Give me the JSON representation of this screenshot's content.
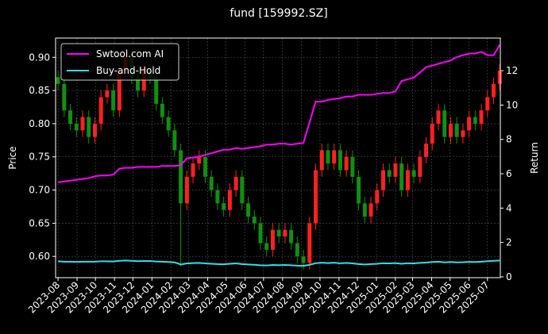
{
  "chart_data": {
    "type": "candlestick",
    "title": "fund [159992.SZ]",
    "ylabel": "Price",
    "y2label": "Return",
    "x": [
      0,
      10,
      20,
      30,
      40,
      50,
      60,
      70,
      80,
      90,
      100,
      110,
      120,
      130,
      140,
      150,
      160,
      170,
      180,
      190,
      200,
      210,
      220,
      230,
      240,
      250,
      260,
      270,
      280,
      290,
      300,
      310,
      320,
      330,
      340,
      350,
      360,
      370,
      380,
      390,
      400,
      410,
      420,
      430,
      440,
      450,
      460,
      470,
      480,
      490,
      500,
      510,
      520,
      530,
      540,
      550,
      560,
      570,
      580,
      590,
      600,
      610,
      620,
      630,
      640,
      650,
      660,
      670,
      680,
      690,
      700,
      710,
      720
    ],
    "open": [
      0.87,
      0.86,
      0.82,
      0.8,
      0.79,
      0.81,
      0.78,
      0.8,
      0.84,
      0.85,
      0.82,
      0.88,
      0.9,
      0.87,
      0.85,
      0.88,
      0.87,
      0.83,
      0.81,
      0.79,
      0.76,
      0.68,
      0.72,
      0.74,
      0.75,
      0.72,
      0.7,
      0.68,
      0.67,
      0.7,
      0.72,
      0.68,
      0.66,
      0.65,
      0.62,
      0.61,
      0.64,
      0.63,
      0.64,
      0.62,
      0.6,
      0.59,
      0.65,
      0.73,
      0.76,
      0.74,
      0.76,
      0.73,
      0.75,
      0.72,
      0.68,
      0.66,
      0.68,
      0.7,
      0.73,
      0.72,
      0.74,
      0.7,
      0.73,
      0.72,
      0.75,
      0.77,
      0.8,
      0.82,
      0.78,
      0.8,
      0.78,
      0.79,
      0.81,
      0.8,
      0.82,
      0.84,
      0.86
    ],
    "high": [
      0.88,
      0.87,
      0.83,
      0.81,
      0.82,
      0.82,
      0.81,
      0.85,
      0.86,
      0.86,
      0.89,
      0.91,
      0.91,
      0.88,
      0.89,
      0.89,
      0.88,
      0.84,
      0.82,
      0.8,
      0.77,
      0.73,
      0.75,
      0.76,
      0.76,
      0.73,
      0.71,
      0.69,
      0.71,
      0.73,
      0.73,
      0.69,
      0.67,
      0.66,
      0.63,
      0.65,
      0.65,
      0.65,
      0.65,
      0.63,
      0.61,
      0.66,
      0.74,
      0.77,
      0.77,
      0.77,
      0.77,
      0.76,
      0.76,
      0.73,
      0.69,
      0.69,
      0.71,
      0.74,
      0.74,
      0.75,
      0.75,
      0.74,
      0.74,
      0.76,
      0.78,
      0.81,
      0.83,
      0.83,
      0.81,
      0.81,
      0.8,
      0.82,
      0.82,
      0.83,
      0.85,
      0.87,
      0.89
    ],
    "low": [
      0.85,
      0.81,
      0.79,
      0.78,
      0.78,
      0.77,
      0.77,
      0.79,
      0.83,
      0.81,
      0.81,
      0.87,
      0.86,
      0.84,
      0.84,
      0.86,
      0.82,
      0.8,
      0.78,
      0.75,
      0.585,
      0.67,
      0.71,
      0.73,
      0.71,
      0.69,
      0.67,
      0.66,
      0.66,
      0.69,
      0.67,
      0.65,
      0.64,
      0.61,
      0.6,
      0.6,
      0.62,
      0.62,
      0.61,
      0.59,
      0.58,
      0.58,
      0.64,
      0.72,
      0.73,
      0.73,
      0.72,
      0.72,
      0.71,
      0.67,
      0.65,
      0.65,
      0.67,
      0.69,
      0.71,
      0.71,
      0.69,
      0.69,
      0.71,
      0.71,
      0.74,
      0.76,
      0.79,
      0.77,
      0.77,
      0.77,
      0.77,
      0.78,
      0.79,
      0.79,
      0.81,
      0.83,
      0.85
    ],
    "close": [
      0.86,
      0.82,
      0.8,
      0.79,
      0.81,
      0.78,
      0.8,
      0.84,
      0.85,
      0.82,
      0.88,
      0.9,
      0.87,
      0.85,
      0.88,
      0.87,
      0.83,
      0.81,
      0.79,
      0.76,
      0.68,
      0.72,
      0.74,
      0.75,
      0.72,
      0.7,
      0.68,
      0.67,
      0.7,
      0.72,
      0.68,
      0.66,
      0.65,
      0.62,
      0.61,
      0.64,
      0.63,
      0.64,
      0.62,
      0.6,
      0.59,
      0.65,
      0.73,
      0.76,
      0.74,
      0.76,
      0.73,
      0.75,
      0.72,
      0.68,
      0.66,
      0.68,
      0.7,
      0.73,
      0.72,
      0.74,
      0.7,
      0.73,
      0.72,
      0.75,
      0.77,
      0.8,
      0.82,
      0.78,
      0.8,
      0.78,
      0.79,
      0.81,
      0.8,
      0.82,
      0.84,
      0.86,
      0.88
    ],
    "up_color": "#ff2020",
    "down_color": "#109010",
    "series": [
      {
        "name": "Swtool.com AI",
        "color": "#ff00ff",
        "axis": "y2",
        "values": [
          5.5,
          5.55,
          5.6,
          5.65,
          5.7,
          5.75,
          5.85,
          5.9,
          5.9,
          5.95,
          6.3,
          6.35,
          6.35,
          6.4,
          6.4,
          6.4,
          6.4,
          6.45,
          6.45,
          6.45,
          6.5,
          6.9,
          6.95,
          7.0,
          7.1,
          7.2,
          7.3,
          7.4,
          7.4,
          7.5,
          7.45,
          7.5,
          7.55,
          7.6,
          7.7,
          7.7,
          7.75,
          7.75,
          7.7,
          7.75,
          7.8,
          9.0,
          10.2,
          10.2,
          10.3,
          10.35,
          10.4,
          10.5,
          10.5,
          10.6,
          10.6,
          10.6,
          10.65,
          10.7,
          10.7,
          10.8,
          11.4,
          11.5,
          11.6,
          11.9,
          12.2,
          12.3,
          12.4,
          12.5,
          12.6,
          12.8,
          12.9,
          13.0,
          13.0,
          13.1,
          12.9,
          12.9,
          13.5
        ]
      },
      {
        "name": "Buy-and-Hold",
        "color": "#30e0e8",
        "axis": "y2",
        "values": [
          0.9,
          0.88,
          0.88,
          0.87,
          0.88,
          0.88,
          0.88,
          0.9,
          0.9,
          0.89,
          0.93,
          0.95,
          0.93,
          0.91,
          0.92,
          0.92,
          0.89,
          0.88,
          0.86,
          0.84,
          0.72,
          0.78,
          0.8,
          0.81,
          0.78,
          0.76,
          0.74,
          0.73,
          0.76,
          0.78,
          0.74,
          0.72,
          0.7,
          0.67,
          0.66,
          0.69,
          0.68,
          0.69,
          0.67,
          0.65,
          0.64,
          0.7,
          0.79,
          0.82,
          0.8,
          0.82,
          0.79,
          0.81,
          0.78,
          0.74,
          0.72,
          0.74,
          0.76,
          0.79,
          0.78,
          0.8,
          0.76,
          0.79,
          0.78,
          0.81,
          0.83,
          0.86,
          0.88,
          0.84,
          0.86,
          0.84,
          0.85,
          0.87,
          0.86,
          0.88,
          0.91,
          0.93,
          0.95
        ]
      }
    ],
    "xlim": [
      -4,
      721
    ],
    "xticks": [
      {
        "value": 0,
        "label": "2023-08"
      },
      {
        "value": 31,
        "label": "2023-09"
      },
      {
        "value": 61,
        "label": "2023-10"
      },
      {
        "value": 92,
        "label": "2023-11"
      },
      {
        "value": 122,
        "label": "2023-12"
      },
      {
        "value": 153,
        "label": "2024-01"
      },
      {
        "value": 184,
        "label": "2024-02"
      },
      {
        "value": 213,
        "label": "2024-03"
      },
      {
        "value": 244,
        "label": "2024-04"
      },
      {
        "value": 274,
        "label": "2024-05"
      },
      {
        "value": 305,
        "label": "2024-06"
      },
      {
        "value": 335,
        "label": "2024-07"
      },
      {
        "value": 366,
        "label": "2024-08"
      },
      {
        "value": 397,
        "label": "2024-09"
      },
      {
        "value": 427,
        "label": "2024-10"
      },
      {
        "value": 458,
        "label": "2024-11"
      },
      {
        "value": 488,
        "label": "2024-12"
      },
      {
        "value": 519,
        "label": "2025-01"
      },
      {
        "value": 550,
        "label": "2025-02"
      },
      {
        "value": 578,
        "label": "2025-03"
      },
      {
        "value": 609,
        "label": "2025-04"
      },
      {
        "value": 639,
        "label": "2025-05"
      },
      {
        "value": 670,
        "label": "2025-06"
      },
      {
        "value": 700,
        "label": "2025-07"
      }
    ],
    "ylim": [
      0.568,
      0.929
    ],
    "yticks": [
      {
        "value": 0.6,
        "label": "0.60"
      },
      {
        "value": 0.65,
        "label": "0.65"
      },
      {
        "value": 0.7,
        "label": "0.70"
      },
      {
        "value": 0.75,
        "label": "0.75"
      },
      {
        "value": 0.8,
        "label": "0.80"
      },
      {
        "value": 0.85,
        "label": "0.85"
      },
      {
        "value": 0.9,
        "label": "0.90"
      }
    ],
    "y2lim": [
      -0.05,
      13.9
    ],
    "y2ticks": [
      0,
      2,
      4,
      6,
      8,
      10,
      12
    ],
    "grid": true,
    "legend": "upper left"
  }
}
